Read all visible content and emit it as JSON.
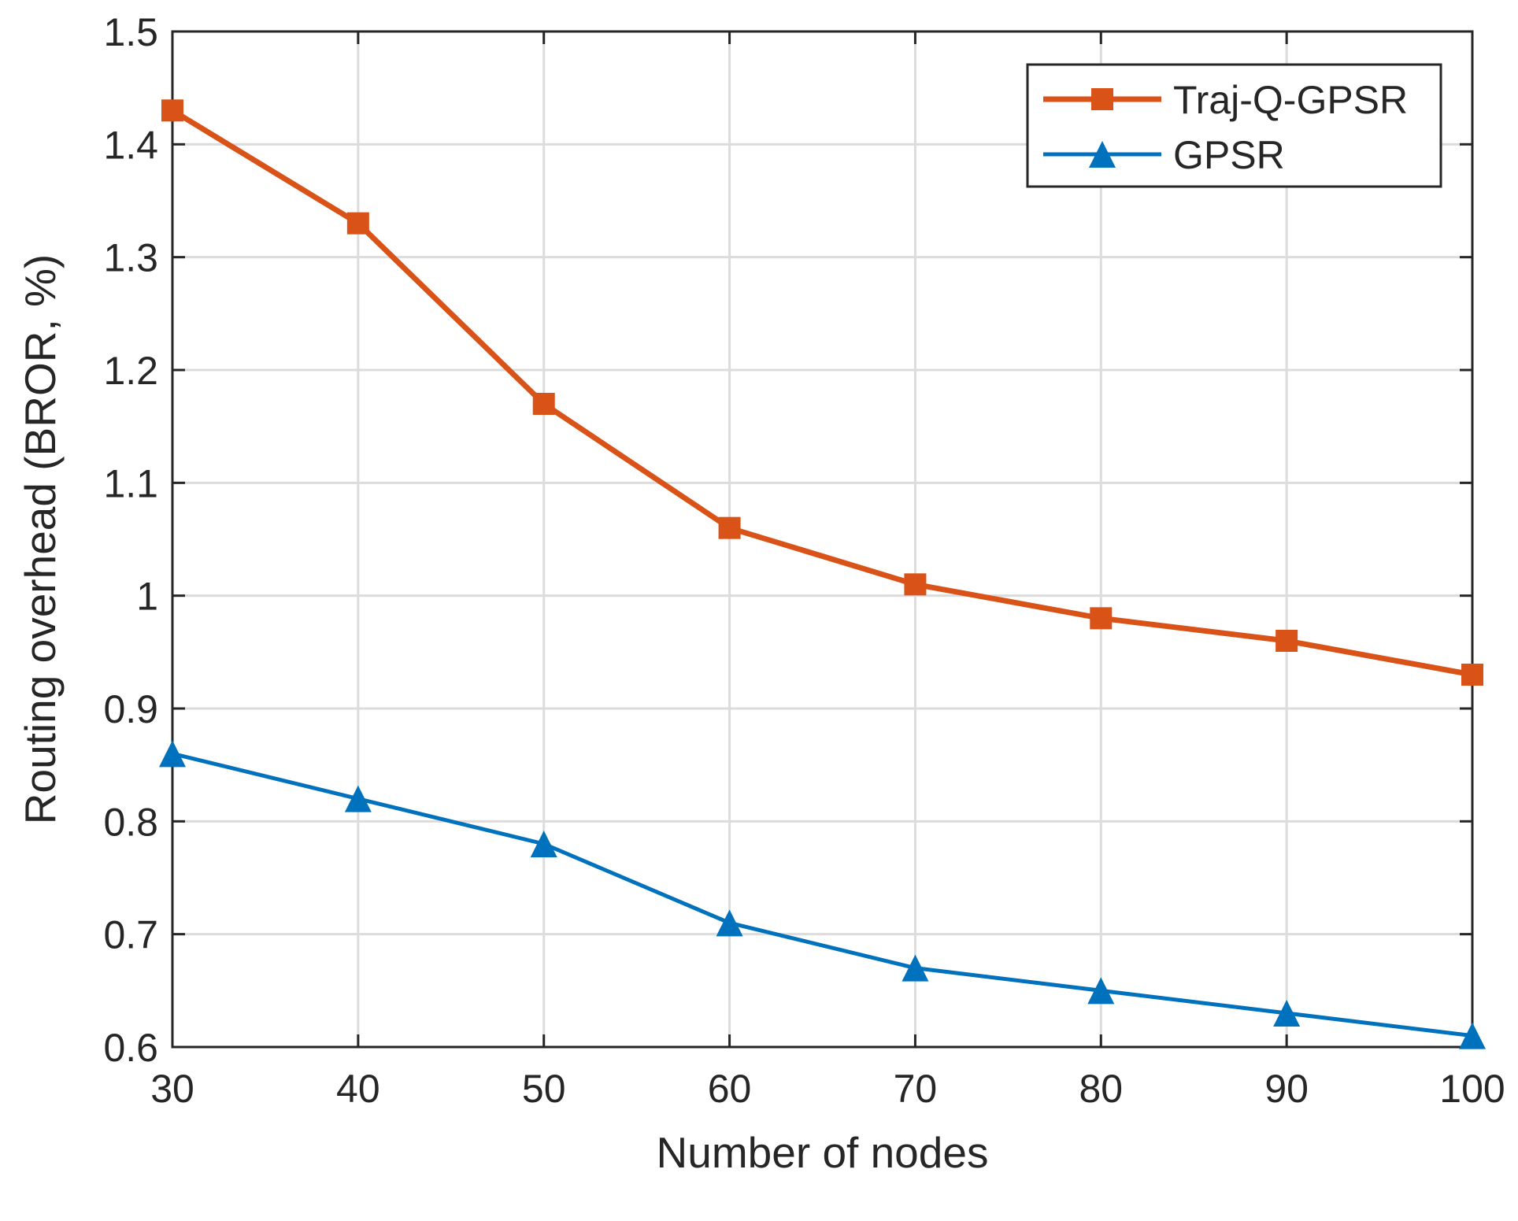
{
  "chart_data": {
    "type": "line",
    "title": "",
    "xlabel": "Number of nodes",
    "ylabel": "Routing overhead (BROR, %)",
    "x": [
      30,
      40,
      50,
      60,
      70,
      80,
      90,
      100
    ],
    "xlim": [
      30,
      100
    ],
    "ylim": [
      0.6,
      1.5
    ],
    "xticks": [
      30,
      40,
      50,
      60,
      70,
      80,
      90,
      100
    ],
    "xtick_labels": [
      "30",
      "40",
      "50",
      "60",
      "70",
      "80",
      "90",
      "100"
    ],
    "yticks": [
      0.6,
      0.7,
      0.8,
      0.9,
      1.0,
      1.1,
      1.2,
      1.3,
      1.4,
      1.5
    ],
    "ytick_labels": [
      "0.6",
      "0.7",
      "0.8",
      "0.9",
      "1",
      "1.1",
      "1.2",
      "1.3",
      "1.4",
      "1.5"
    ],
    "grid": true,
    "legend_position": "top-right",
    "series": [
      {
        "name": "Traj-Q-GPSR",
        "marker": "square",
        "color": "#D95319",
        "values": [
          1.43,
          1.33,
          1.17,
          1.06,
          1.01,
          0.98,
          0.96,
          0.93
        ]
      },
      {
        "name": "GPSR",
        "marker": "triangle",
        "color": "#0072BD",
        "values": [
          0.86,
          0.82,
          0.78,
          0.71,
          0.67,
          0.65,
          0.63,
          0.61
        ]
      }
    ]
  }
}
